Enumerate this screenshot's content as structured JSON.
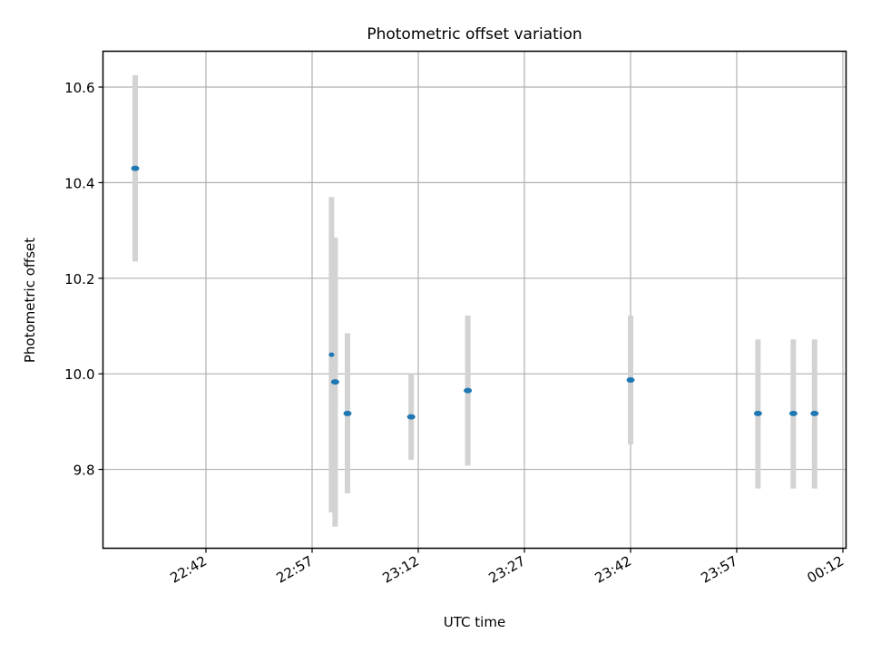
{
  "chart_data": {
    "type": "scatter",
    "title": "Photometric offset variation",
    "xlabel": "UTC time",
    "ylabel": "Photometric offset",
    "x_tick_labels": [
      "22:42",
      "22:57",
      "23:12",
      "23:27",
      "23:42",
      "23:57",
      "00:12"
    ],
    "y_tick_labels": [
      "9.8",
      "10.0",
      "10.2",
      "10.4",
      "10.6"
    ],
    "y_ticks": [
      9.8,
      10.0,
      10.2,
      10.4,
      10.6
    ],
    "ylim": [
      9.635,
      10.675
    ],
    "grid": true,
    "series": [
      {
        "marker": "dot",
        "error_bars": true,
        "points": [
          {
            "x": "22:32",
            "y": 10.43,
            "ymin": 10.235,
            "ymax": 10.625
          },
          {
            "x": "23:00",
            "y": 10.04,
            "ymin": 9.71,
            "ymax": 10.37
          },
          {
            "x": "23:00",
            "y": 9.983,
            "ymin": 9.68,
            "ymax": 10.285
          },
          {
            "x": "23:02",
            "y": 9.917,
            "ymin": 9.75,
            "ymax": 10.085
          },
          {
            "x": "23:11",
            "y": 9.91,
            "ymin": 9.82,
            "ymax": 10.0
          },
          {
            "x": "23:19",
            "y": 9.965,
            "ymin": 9.808,
            "ymax": 10.122
          },
          {
            "x": "23:42",
            "y": 9.987,
            "ymin": 9.852,
            "ymax": 10.122
          },
          {
            "x": "00:00",
            "y": 9.917,
            "ymin": 9.76,
            "ymax": 10.072
          },
          {
            "x": "00:05",
            "y": 9.917,
            "ymin": 9.76,
            "ymax": 10.072
          },
          {
            "x": "00:08",
            "y": 9.917,
            "ymin": 9.76,
            "ymax": 10.072
          }
        ]
      }
    ],
    "colors": {
      "marker": "#1f77b4",
      "errorbar": "#d3d3d3",
      "grid": "#b0b0b0",
      "axes": "#000000"
    }
  }
}
